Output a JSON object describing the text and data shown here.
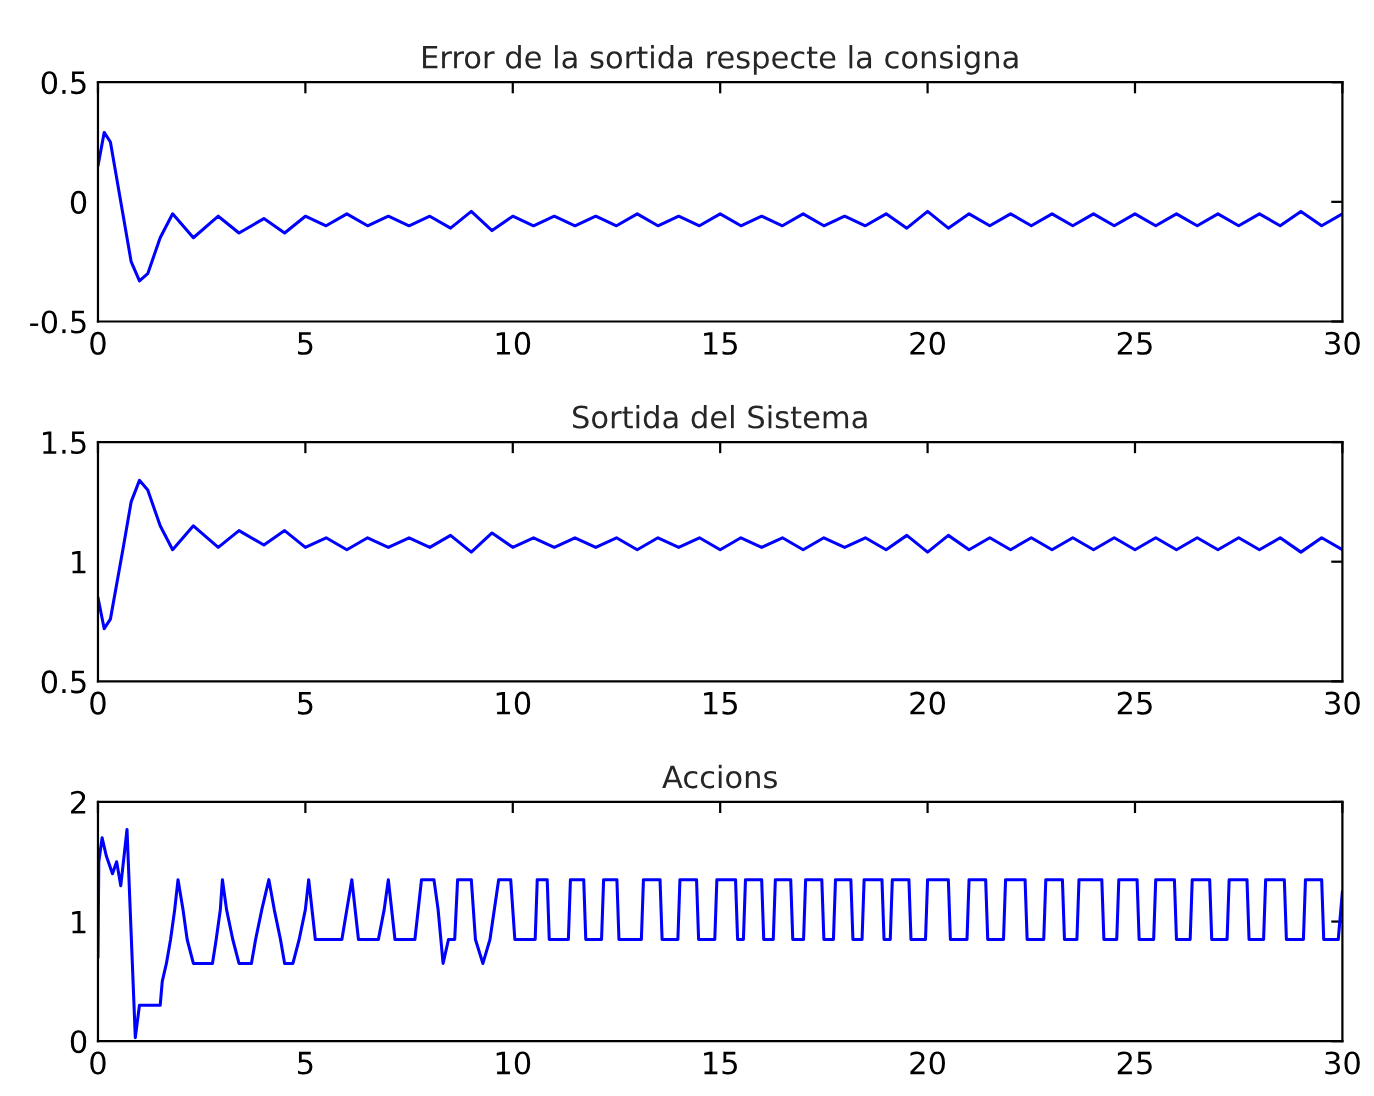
{
  "chart_data": [
    {
      "type": "line",
      "title": "Error de la sortida respecte la consigna",
      "xlim": [
        0,
        30
      ],
      "xticks": [
        0,
        5,
        10,
        15,
        20,
        25,
        30
      ],
      "ylim": [
        -0.5,
        0.5
      ],
      "yticks": [
        -0.5,
        0,
        0.5
      ],
      "x": [
        0,
        0.15,
        0.3,
        0.6,
        0.8,
        1.0,
        1.2,
        1.5,
        1.8,
        2.3,
        2.9,
        3.4,
        4.0,
        4.5,
        5.0,
        5.5,
        6.0,
        6.5,
        7.0,
        7.5,
        8.0,
        8.5,
        9.0,
        9.5,
        10.0,
        10.5,
        11,
        11.5,
        12,
        12.5,
        13,
        13.5,
        14,
        14.5,
        15,
        15.5,
        16,
        16.5,
        17,
        17.5,
        18,
        18.5,
        19,
        19.5,
        20,
        20.5,
        21,
        21.5,
        22,
        22.5,
        23,
        23.5,
        24,
        24.5,
        25,
        25.5,
        26,
        26.5,
        27,
        27.5,
        28,
        28.5,
        29,
        29.5,
        30
      ],
      "series": [
        {
          "color": "#0000ff",
          "values": [
            0.15,
            0.29,
            0.25,
            -0.05,
            -0.25,
            -0.33,
            -0.3,
            -0.15,
            -0.05,
            -0.15,
            -0.06,
            -0.13,
            -0.07,
            -0.13,
            -0.06,
            -0.1,
            -0.05,
            -0.1,
            -0.06,
            -0.1,
            -0.06,
            -0.11,
            -0.04,
            -0.12,
            -0.06,
            -0.1,
            -0.06,
            -0.1,
            -0.06,
            -0.1,
            -0.05,
            -0.1,
            -0.06,
            -0.1,
            -0.05,
            -0.1,
            -0.06,
            -0.1,
            -0.05,
            -0.1,
            -0.06,
            -0.1,
            -0.05,
            -0.11,
            -0.04,
            -0.11,
            -0.05,
            -0.1,
            -0.05,
            -0.1,
            -0.05,
            -0.1,
            -0.05,
            -0.1,
            -0.05,
            -0.1,
            -0.05,
            -0.1,
            -0.05,
            -0.1,
            -0.05,
            -0.1,
            -0.04,
            -0.1,
            -0.05
          ]
        }
      ]
    },
    {
      "type": "line",
      "title": "Sortida del Sistema",
      "xlim": [
        0,
        30
      ],
      "xticks": [
        0,
        5,
        10,
        15,
        20,
        25,
        30
      ],
      "ylim": [
        0.5,
        1.5
      ],
      "yticks": [
        0.5,
        1,
        1.5
      ],
      "x": [
        0,
        0.15,
        0.3,
        0.6,
        0.8,
        1.0,
        1.2,
        1.5,
        1.8,
        2.3,
        2.9,
        3.4,
        4.0,
        4.5,
        5.0,
        5.5,
        6.0,
        6.5,
        7.0,
        7.5,
        8.0,
        8.5,
        9.0,
        9.5,
        10.0,
        10.5,
        11,
        11.5,
        12,
        12.5,
        13,
        13.5,
        14,
        14.5,
        15,
        15.5,
        16,
        16.5,
        17,
        17.5,
        18,
        18.5,
        19,
        19.5,
        20,
        20.5,
        21,
        21.5,
        22,
        22.5,
        23,
        23.5,
        24,
        24.5,
        25,
        25.5,
        26,
        26.5,
        27,
        27.5,
        28,
        28.5,
        29,
        29.5,
        30
      ],
      "series": [
        {
          "color": "#0000ff",
          "values": [
            0.85,
            0.72,
            0.76,
            1.05,
            1.25,
            1.34,
            1.3,
            1.15,
            1.05,
            1.15,
            1.06,
            1.13,
            1.07,
            1.13,
            1.06,
            1.1,
            1.05,
            1.1,
            1.06,
            1.1,
            1.06,
            1.11,
            1.04,
            1.12,
            1.06,
            1.1,
            1.06,
            1.1,
            1.06,
            1.1,
            1.05,
            1.1,
            1.06,
            1.1,
            1.05,
            1.1,
            1.06,
            1.1,
            1.05,
            1.1,
            1.06,
            1.1,
            1.05,
            1.11,
            1.04,
            1.11,
            1.05,
            1.1,
            1.05,
            1.1,
            1.05,
            1.1,
            1.05,
            1.1,
            1.05,
            1.1,
            1.05,
            1.1,
            1.05,
            1.1,
            1.05,
            1.1,
            1.04,
            1.1,
            1.05
          ]
        }
      ]
    },
    {
      "type": "line",
      "title": "Accions",
      "xlim": [
        0,
        30
      ],
      "xticks": [
        0,
        5,
        10,
        15,
        20,
        25,
        30
      ],
      "ylim": [
        0,
        2
      ],
      "yticks": [
        0,
        1,
        2
      ],
      "x": [
        0,
        0.02,
        0.1,
        0.2,
        0.35,
        0.45,
        0.55,
        0.7,
        0.9,
        1.0,
        1.05,
        1.5,
        1.55,
        1.65,
        1.75,
        1.85,
        1.93,
        2.05,
        2.15,
        2.3,
        2.76,
        2.85,
        2.95,
        3.0,
        3.1,
        3.25,
        3.4,
        3.7,
        3.8,
        3.95,
        4.12,
        4.25,
        4.4,
        4.5,
        4.7,
        4.85,
        5.0,
        5.08,
        5.24,
        5.88,
        6.0,
        6.12,
        6.28,
        6.76,
        6.9,
        7.0,
        7.16,
        7.64,
        7.8,
        8.1,
        8.2,
        8.32,
        8.45,
        8.6,
        8.67,
        9.0,
        9.1,
        9.28,
        9.45,
        9.66,
        9.95,
        10.05,
        10.5,
        10.54,
        10.59,
        10.83,
        10.88,
        11.34,
        11.39,
        11.71,
        11.76,
        12.14,
        12.19,
        12.51,
        12.56,
        13.1,
        13.15,
        13.55,
        13.6,
        13.98,
        14.03,
        14.43,
        14.48,
        14.87,
        14.92,
        15.37,
        15.42,
        15.56,
        15.61,
        16.0,
        16.05,
        16.28,
        16.33,
        16.7,
        16.75,
        17.01,
        17.06,
        17.45,
        17.5,
        17.73,
        17.78,
        18.15,
        18.2,
        18.42,
        18.47,
        18.9,
        18.95,
        19.1,
        19.15,
        19.55,
        19.6,
        19.95,
        20.0,
        20.5,
        20.55,
        20.95,
        21.0,
        21.4,
        21.45,
        21.83,
        21.88,
        22.35,
        22.4,
        22.8,
        22.85,
        23.25,
        23.3,
        23.6,
        23.65,
        24.2,
        24.25,
        24.56,
        24.61,
        25.05,
        25.1,
        25.45,
        25.5,
        25.95,
        26.0,
        26.33,
        26.38,
        26.8,
        26.85,
        27.22,
        27.27,
        27.7,
        27.75,
        28.1,
        28.15,
        28.6,
        28.65,
        29.06,
        29.11,
        29.5,
        29.55,
        29.9,
        30
      ],
      "series": [
        {
          "color": "#0000ff",
          "values": [
            0.7,
            1.5,
            1.7,
            1.55,
            1.4,
            1.5,
            1.3,
            1.77,
            0.03,
            0.3,
            0.3,
            0.3,
            0.5,
            0.65,
            0.85,
            1.1,
            1.35,
            1.1,
            0.85,
            0.65,
            0.65,
            0.85,
            1.1,
            1.35,
            1.1,
            0.85,
            0.65,
            0.65,
            0.85,
            1.1,
            1.35,
            1.1,
            0.85,
            0.65,
            0.65,
            0.85,
            1.1,
            1.35,
            0.85,
            0.85,
            1.1,
            1.35,
            0.85,
            0.85,
            1.1,
            1.35,
            0.85,
            0.85,
            1.35,
            1.35,
            1.1,
            0.65,
            0.85,
            0.85,
            1.35,
            1.35,
            0.85,
            0.65,
            0.85,
            1.35,
            1.35,
            0.85,
            0.85,
            0.85,
            1.35,
            1.35,
            0.85,
            0.85,
            1.35,
            1.35,
            0.85,
            0.85,
            1.35,
            1.35,
            0.85,
            0.85,
            1.35,
            1.35,
            0.85,
            0.85,
            1.35,
            1.35,
            0.85,
            0.85,
            1.35,
            1.35,
            0.85,
            0.85,
            1.35,
            1.35,
            0.85,
            0.85,
            1.35,
            1.35,
            0.85,
            0.85,
            1.35,
            1.35,
            0.85,
            0.85,
            1.35,
            1.35,
            0.85,
            0.85,
            1.35,
            1.35,
            0.85,
            0.85,
            1.35,
            1.35,
            0.85,
            0.85,
            1.35,
            1.35,
            0.85,
            0.85,
            1.35,
            1.35,
            0.85,
            0.85,
            1.35,
            1.35,
            0.85,
            0.85,
            1.35,
            1.35,
            0.85,
            0.85,
            1.35,
            1.35,
            0.85,
            0.85,
            1.35,
            1.35,
            0.85,
            0.85,
            1.35,
            1.35,
            0.85,
            0.85,
            1.35,
            1.35,
            0.85,
            0.85,
            1.35,
            1.35,
            0.85,
            0.85,
            1.35,
            1.35,
            0.85,
            0.85,
            1.35,
            1.35,
            0.85,
            0.85,
            1.25
          ]
        }
      ]
    }
  ]
}
